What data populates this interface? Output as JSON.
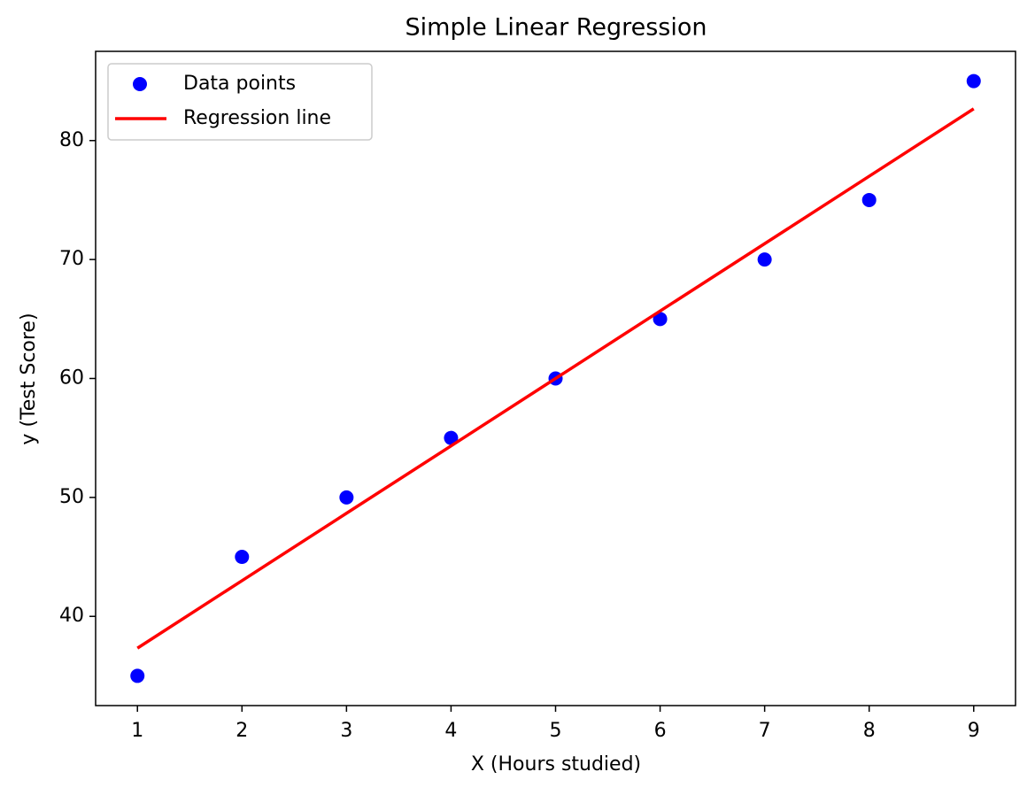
{
  "chart_data": {
    "type": "scatter",
    "title": "Simple Linear Regression",
    "x_label": "X (Hours studied)",
    "y_label": "y (Test Score)",
    "x": [
      1,
      2,
      3,
      4,
      5,
      6,
      7,
      8,
      9
    ],
    "series": [
      {
        "name": "Data points",
        "type": "scatter",
        "color": "#0000ff",
        "values": [
          35,
          45,
          50,
          55,
          60,
          65,
          70,
          75,
          85
        ]
      },
      {
        "name": "Regression line",
        "type": "line",
        "color": "#ff0000",
        "values": [
          37.33,
          43,
          48.67,
          54.33,
          60,
          65.67,
          71.33,
          77,
          82.67
        ]
      }
    ],
    "xlim": [
      0.6,
      9.4
    ],
    "ylim": [
      32.5,
      87.5
    ],
    "xticks": [
      1,
      2,
      3,
      4,
      5,
      6,
      7,
      8,
      9
    ],
    "yticks": [
      40,
      50,
      60,
      70,
      80
    ],
    "grid": false,
    "legend": "upper left"
  }
}
